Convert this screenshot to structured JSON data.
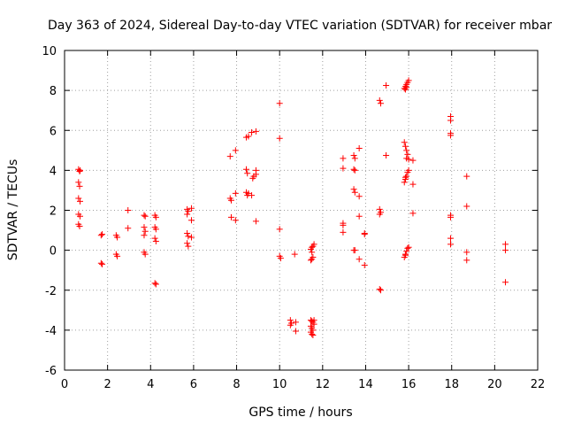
{
  "chart_data": {
    "type": "scatter",
    "title": "Day 363 of 2024, Sidereal Day-to-day VTEC variation (SDTVAR) for receiver mbar",
    "xlabel": "GPS time / hours",
    "ylabel": "SDTVAR / TECUs",
    "xlim": [
      0,
      22
    ],
    "ylim": [
      -6,
      10
    ],
    "xticks": [
      "0",
      "2",
      "4",
      "6",
      "8",
      "10",
      "12",
      "14",
      "16",
      "18",
      "20",
      "22"
    ],
    "yticks": [
      "-6",
      "-4",
      "-2",
      "0",
      "2",
      "4",
      "6",
      "8",
      "10"
    ],
    "grid": true,
    "marker": "plus",
    "color": "#ff0000",
    "series": [
      {
        "name": "SDTVAR",
        "points": [
          [
            0.65,
            4.05
          ],
          [
            0.7,
            3.95
          ],
          [
            0.72,
            4.0
          ],
          [
            0.65,
            3.4
          ],
          [
            0.7,
            3.2
          ],
          [
            0.65,
            2.6
          ],
          [
            0.72,
            2.45
          ],
          [
            0.65,
            1.8
          ],
          [
            0.72,
            1.7
          ],
          [
            0.65,
            1.3
          ],
          [
            0.7,
            1.2
          ],
          [
            1.7,
            0.75
          ],
          [
            1.75,
            0.8
          ],
          [
            1.7,
            -0.65
          ],
          [
            1.75,
            -0.7
          ],
          [
            2.4,
            0.75
          ],
          [
            2.45,
            0.65
          ],
          [
            2.4,
            -0.2
          ],
          [
            2.45,
            -0.3
          ],
          [
            2.95,
            2.0
          ],
          [
            2.95,
            1.1
          ],
          [
            3.7,
            1.75
          ],
          [
            3.75,
            1.7
          ],
          [
            3.7,
            1.15
          ],
          [
            3.75,
            0.95
          ],
          [
            3.7,
            0.75
          ],
          [
            3.7,
            -0.1
          ],
          [
            3.75,
            -0.2
          ],
          [
            4.2,
            1.75
          ],
          [
            4.25,
            1.65
          ],
          [
            4.2,
            1.15
          ],
          [
            4.25,
            1.05
          ],
          [
            4.2,
            0.6
          ],
          [
            4.25,
            0.45
          ],
          [
            4.2,
            -1.65
          ],
          [
            4.25,
            -1.7
          ],
          [
            5.7,
            2.05
          ],
          [
            5.75,
            1.95
          ],
          [
            5.7,
            1.8
          ],
          [
            5.9,
            2.1
          ],
          [
            5.9,
            1.5
          ],
          [
            5.7,
            0.85
          ],
          [
            5.75,
            0.7
          ],
          [
            5.9,
            0.65
          ],
          [
            5.7,
            0.35
          ],
          [
            5.75,
            0.2
          ],
          [
            7.7,
            4.7
          ],
          [
            7.7,
            2.6
          ],
          [
            7.75,
            1.65
          ],
          [
            7.75,
            2.5
          ],
          [
            7.95,
            2.85
          ],
          [
            7.95,
            5.0
          ],
          [
            7.95,
            1.5
          ],
          [
            8.45,
            5.65
          ],
          [
            8.55,
            5.7
          ],
          [
            8.45,
            4.05
          ],
          [
            8.5,
            3.85
          ],
          [
            8.45,
            2.9
          ],
          [
            8.5,
            2.75
          ],
          [
            8.55,
            2.85
          ],
          [
            8.7,
            2.75
          ],
          [
            8.7,
            5.9
          ],
          [
            8.75,
            3.6
          ],
          [
            8.8,
            3.7
          ],
          [
            8.9,
            5.95
          ],
          [
            8.9,
            3.8
          ],
          [
            8.9,
            4.0
          ],
          [
            8.9,
            1.45
          ],
          [
            10.0,
            7.35
          ],
          [
            10.0,
            5.6
          ],
          [
            10.0,
            1.05
          ],
          [
            10.0,
            -0.3
          ],
          [
            10.05,
            -0.4
          ],
          [
            10.5,
            -3.5
          ],
          [
            10.55,
            -3.65
          ],
          [
            10.5,
            -3.75
          ],
          [
            10.7,
            -0.2
          ],
          [
            10.75,
            -3.6
          ],
          [
            10.75,
            -4.05
          ],
          [
            11.45,
            0.05
          ],
          [
            11.5,
            0.15
          ],
          [
            11.55,
            0.2
          ],
          [
            11.5,
            -0.1
          ],
          [
            11.45,
            -0.5
          ],
          [
            11.5,
            -0.45
          ],
          [
            11.55,
            -0.35
          ],
          [
            11.6,
            0.3
          ],
          [
            11.45,
            -3.5
          ],
          [
            11.5,
            -3.55
          ],
          [
            11.55,
            -3.6
          ],
          [
            11.45,
            -3.8
          ],
          [
            11.5,
            -3.9
          ],
          [
            11.55,
            -4.0
          ],
          [
            11.45,
            -4.1
          ],
          [
            11.5,
            -4.2
          ],
          [
            11.55,
            -4.25
          ],
          [
            11.6,
            -3.7
          ],
          [
            11.6,
            -3.5
          ],
          [
            12.95,
            4.6
          ],
          [
            12.95,
            4.1
          ],
          [
            12.95,
            1.35
          ],
          [
            12.95,
            1.25
          ],
          [
            12.95,
            0.9
          ],
          [
            13.45,
            4.75
          ],
          [
            13.5,
            4.6
          ],
          [
            13.45,
            4.05
          ],
          [
            13.5,
            4.0
          ],
          [
            13.45,
            3.05
          ],
          [
            13.5,
            2.9
          ],
          [
            13.45,
            0.0
          ],
          [
            13.5,
            0.0
          ],
          [
            13.7,
            5.1
          ],
          [
            13.7,
            2.7
          ],
          [
            13.7,
            1.7
          ],
          [
            13.7,
            -0.45
          ],
          [
            13.95,
            0.85
          ],
          [
            13.95,
            0.8
          ],
          [
            13.95,
            -0.75
          ],
          [
            14.65,
            7.5
          ],
          [
            14.7,
            7.35
          ],
          [
            14.65,
            2.05
          ],
          [
            14.7,
            1.9
          ],
          [
            14.65,
            1.8
          ],
          [
            14.65,
            -1.95
          ],
          [
            14.7,
            -2.0
          ],
          [
            14.95,
            8.25
          ],
          [
            14.95,
            4.75
          ],
          [
            15.8,
            8.1
          ],
          [
            15.85,
            8.2
          ],
          [
            15.9,
            8.3
          ],
          [
            15.95,
            8.4
          ],
          [
            16.0,
            8.5
          ],
          [
            15.85,
            8.05
          ],
          [
            15.9,
            8.15
          ],
          [
            15.8,
            5.4
          ],
          [
            15.85,
            5.2
          ],
          [
            15.9,
            5.0
          ],
          [
            15.95,
            4.8
          ],
          [
            15.9,
            4.6
          ],
          [
            16.0,
            4.55
          ],
          [
            15.8,
            3.4
          ],
          [
            15.85,
            3.55
          ],
          [
            15.9,
            3.7
          ],
          [
            15.95,
            3.9
          ],
          [
            16.0,
            4.0
          ],
          [
            15.85,
            3.65
          ],
          [
            15.8,
            -0.35
          ],
          [
            15.85,
            -0.2
          ],
          [
            15.9,
            -0.05
          ],
          [
            15.95,
            0.1
          ],
          [
            16.0,
            0.15
          ],
          [
            15.85,
            -0.25
          ],
          [
            16.2,
            4.5
          ],
          [
            16.2,
            3.3
          ],
          [
            16.2,
            1.85
          ],
          [
            17.95,
            6.7
          ],
          [
            17.95,
            6.5
          ],
          [
            17.95,
            5.85
          ],
          [
            17.95,
            5.75
          ],
          [
            17.95,
            1.75
          ],
          [
            17.95,
            1.65
          ],
          [
            17.95,
            0.6
          ],
          [
            17.95,
            0.3
          ],
          [
            18.7,
            3.7
          ],
          [
            18.7,
            2.2
          ],
          [
            18.7,
            -0.1
          ],
          [
            18.7,
            -0.5
          ],
          [
            20.5,
            0.3
          ],
          [
            20.5,
            0.0
          ],
          [
            20.5,
            -1.6
          ]
        ]
      }
    ]
  }
}
